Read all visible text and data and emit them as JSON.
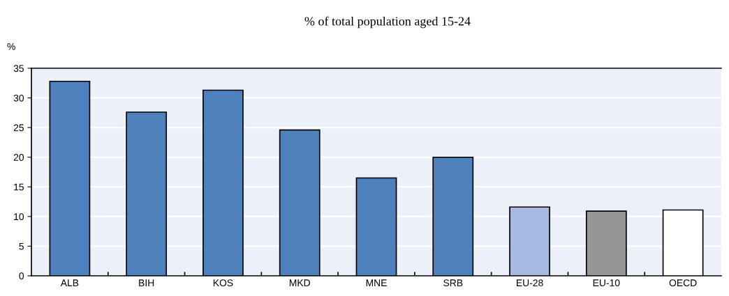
{
  "chart_data": {
    "type": "bar",
    "title": "% of total population aged 15-24",
    "ylabel": "%",
    "categories": [
      "ALB",
      "BIH",
      "KOS",
      "MKD",
      "MNE",
      "SRB",
      "EU-28",
      "EU-10",
      "OECD"
    ],
    "values": [
      32.8,
      27.6,
      31.3,
      24.6,
      16.5,
      20.0,
      11.6,
      10.9,
      11.1
    ],
    "colors": [
      "#4f81bd",
      "#4f81bd",
      "#4f81bd",
      "#4f81bd",
      "#4f81bd",
      "#4f81bd",
      "#a7b8e1",
      "#969696",
      "#ffffff"
    ],
    "ylim": [
      0,
      35
    ],
    "yticks": [
      0,
      5,
      10,
      15,
      20,
      25,
      30,
      35
    ],
    "grid": "y"
  }
}
